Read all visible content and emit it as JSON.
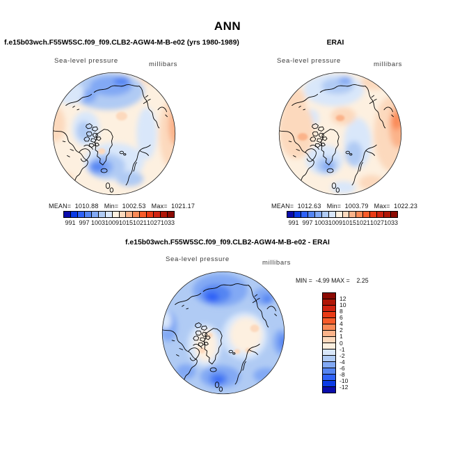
{
  "title": "ANN",
  "panels": {
    "model": {
      "title": "f.e15b03wch.F55W5SC.f09_f09.CLB2-AGW4-M-B-e02 (yrs 1980-1989)",
      "variable": "Sea-level pressure",
      "units": "millibars",
      "stats_line": "MEAN=  1010.88   Min=  1002.53   Max=  1021.17"
    },
    "erai": {
      "title": "ERAI",
      "variable": "Sea-level pressure",
      "units": "millibars",
      "stats_line": "MEAN=  1012.63   Min=  1003.79   Max=  1022.23"
    },
    "diff": {
      "title": "f.e15b03wch.F55W5SC.f09_f09.CLB2-AGW4-M-B-e02 - ERAI",
      "variable": "Sea-level pressure",
      "units": "millibars",
      "minmax_line": "MIN =  -4.99 MAX =    2.25"
    }
  },
  "chart_data": [
    {
      "type": "heatmap",
      "panel": "model",
      "title": "f.e15b03wch.F55W5SC.f09_f09.CLB2-AGW4-M-B-e02 (yrs 1980-1989)",
      "variable": "Sea-level pressure",
      "units": "millibars",
      "projection": "north polar stereographic",
      "stats": {
        "mean": 1010.88,
        "min": 1002.53,
        "max": 1021.17
      },
      "colorbar": {
        "orientation": "horizontal",
        "levels": [
          991,
          994,
          997,
          1000,
          1003,
          1006,
          1009,
          1012,
          1015,
          1018,
          1021,
          1024,
          1027,
          1030,
          1033
        ],
        "tick_labels": [
          "991",
          "997",
          "1003",
          "1009",
          "1015",
          "1021",
          "1027",
          "1033"
        ],
        "colors": [
          "#0a0cab",
          "#0b3be5",
          "#2f62f7",
          "#5585f2",
          "#82a9f4",
          "#b0cbf4",
          "#d9e7fa",
          "#fdf0e0",
          "#fcd9bd",
          "#fbb38a",
          "#fa8a57",
          "#f85c2a",
          "#ea3b16",
          "#d02311",
          "#b01607",
          "#8c0b03"
        ]
      }
    },
    {
      "type": "heatmap",
      "panel": "erai",
      "title": "ERAI",
      "variable": "Sea-level pressure",
      "units": "millibars",
      "projection": "north polar stereographic",
      "stats": {
        "mean": 1012.63,
        "min": 1003.79,
        "max": 1022.23
      },
      "colorbar": {
        "orientation": "horizontal",
        "levels": [
          991,
          994,
          997,
          1000,
          1003,
          1006,
          1009,
          1012,
          1015,
          1018,
          1021,
          1024,
          1027,
          1030,
          1033
        ],
        "tick_labels": [
          "991",
          "997",
          "1003",
          "1009",
          "1015",
          "1021",
          "1027",
          "1033"
        ],
        "colors": [
          "#0a0cab",
          "#0b3be5",
          "#2f62f7",
          "#5585f2",
          "#82a9f4",
          "#b0cbf4",
          "#d9e7fa",
          "#fdf0e0",
          "#fcd9bd",
          "#fbb38a",
          "#fa8a57",
          "#f85c2a",
          "#ea3b16",
          "#d02311",
          "#b01607",
          "#8c0b03"
        ]
      }
    },
    {
      "type": "heatmap",
      "panel": "difference",
      "title": "f.e15b03wch.F55W5SC.f09_f09.CLB2-AGW4-M-B-e02 - ERAI",
      "variable": "Sea-level pressure",
      "units": "millibars",
      "projection": "north polar stereographic",
      "stats": {
        "min": -4.99,
        "max": 2.25
      },
      "colorbar": {
        "orientation": "vertical",
        "levels": [
          12,
          10,
          8,
          6,
          4,
          2,
          1,
          0,
          -1,
          -2,
          -4,
          -6,
          -8,
          -10,
          -12
        ],
        "tick_labels": [
          "12",
          "10",
          "8",
          "6",
          "4",
          "2",
          "1",
          "0",
          "-1",
          "-2",
          "-4",
          "-6",
          "-8",
          "-10",
          "-12"
        ],
        "colors": [
          "#8c0b03",
          "#b01607",
          "#d02311",
          "#ea3b16",
          "#f85c2a",
          "#fa8a57",
          "#fbb38a",
          "#fcd9bd",
          "#fdf0e0",
          "#d9e7fa",
          "#b0cbf4",
          "#82a9f4",
          "#5585f2",
          "#2f62f7",
          "#0b3be5",
          "#0a0cab"
        ]
      }
    }
  ]
}
